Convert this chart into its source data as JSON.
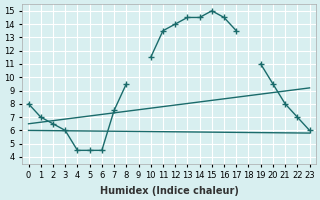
{
  "xlabel": "Humidex (Indice chaleur)",
  "xlim": [
    -0.5,
    23.5
  ],
  "ylim": [
    3.5,
    15.5
  ],
  "yticks": [
    4,
    5,
    6,
    7,
    8,
    9,
    10,
    11,
    12,
    13,
    14,
    15
  ],
  "xticks": [
    0,
    1,
    2,
    3,
    4,
    5,
    6,
    7,
    8,
    9,
    10,
    11,
    12,
    13,
    14,
    15,
    16,
    17,
    18,
    19,
    20,
    21,
    22,
    23
  ],
  "bg_color": "#d8eff0",
  "grid_color": "#ffffff",
  "line_color": "#1a6b6b",
  "line1_x": [
    0,
    1,
    2,
    3,
    4,
    5,
    6,
    7,
    8,
    9,
    10,
    11,
    12,
    13,
    14,
    15,
    16,
    17,
    18,
    19,
    20,
    21,
    22,
    23
  ],
  "line1_y": [
    8.0,
    7.0,
    6.5,
    6.0,
    4.5,
    4.5,
    4.5,
    7.5,
    9.5,
    null,
    11.5,
    13.5,
    14.0,
    14.5,
    14.5,
    15.0,
    14.5,
    13.5,
    null,
    11.0,
    9.5,
    8.0,
    7.0,
    6.0
  ],
  "line3_x": [
    0,
    23
  ],
  "line3_y": [
    6.0,
    5.8
  ],
  "line4_x": [
    0,
    23
  ],
  "line4_y": [
    6.5,
    9.2
  ]
}
